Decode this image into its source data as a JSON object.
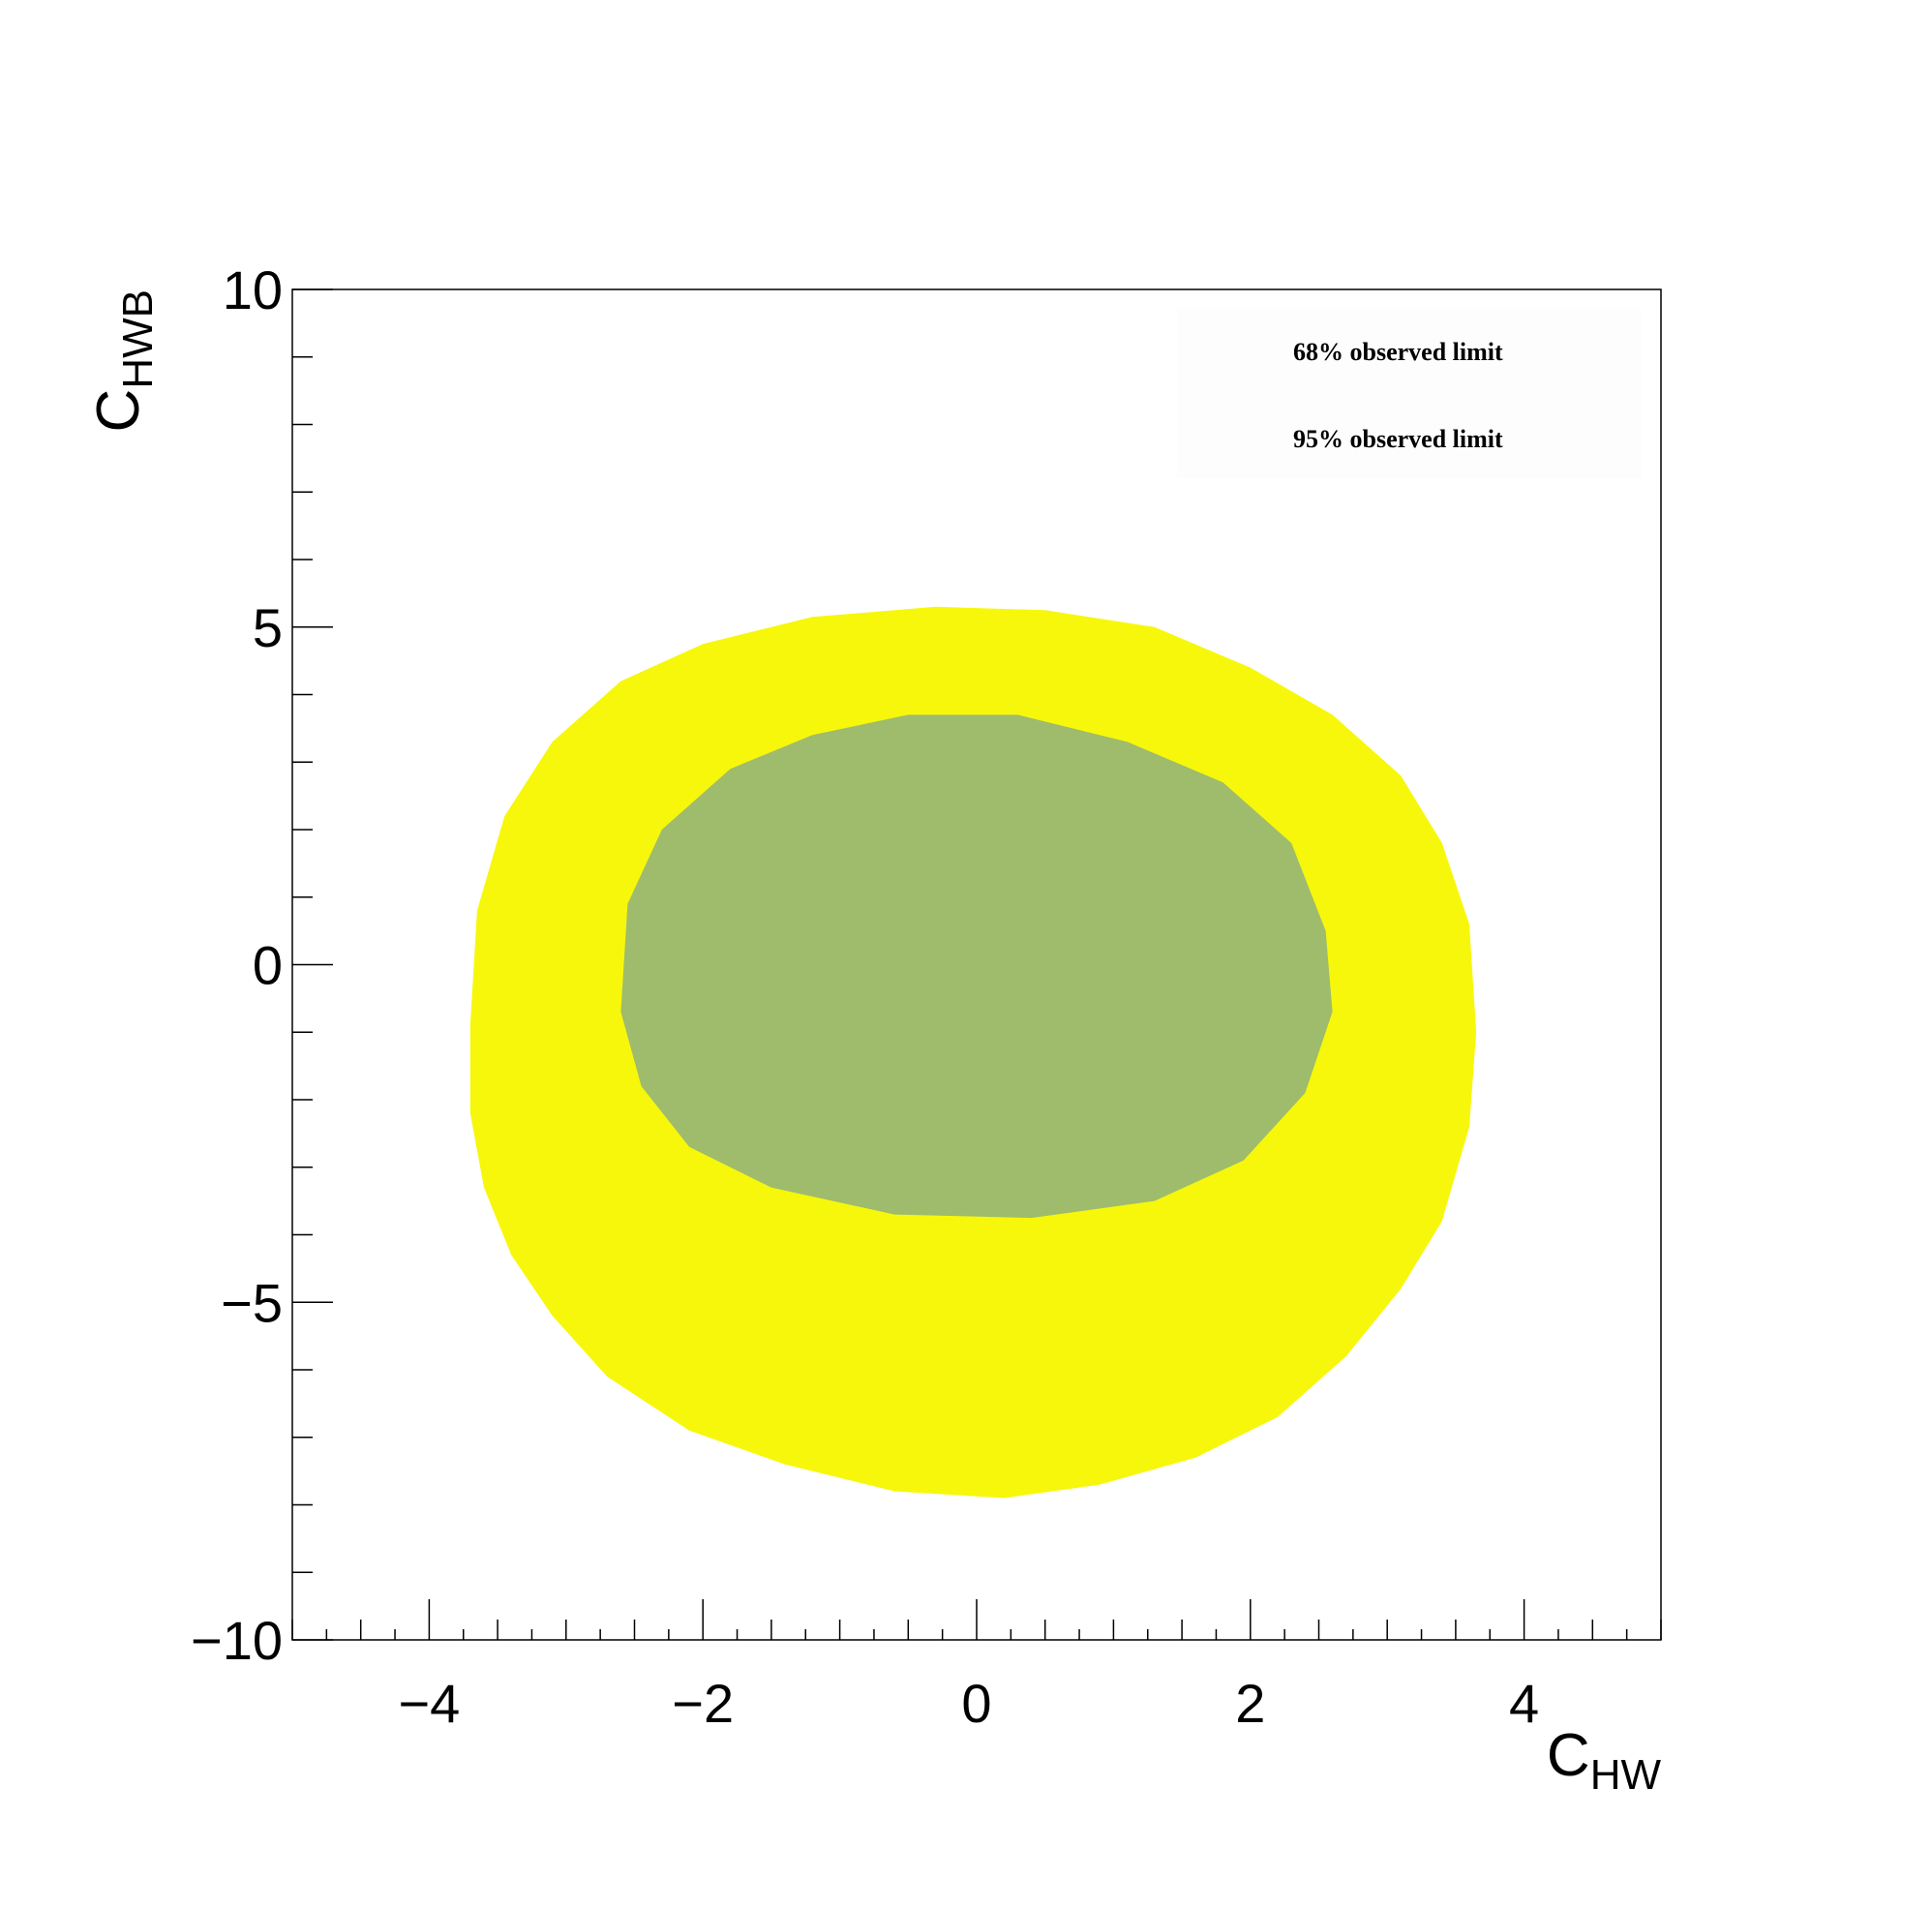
{
  "chart_data": {
    "type": "contour",
    "title": "",
    "xlabel": {
      "main": "C",
      "sub": "HW"
    },
    "ylabel": {
      "main": "C",
      "sub": "HWB"
    },
    "xlim": [
      -5,
      5
    ],
    "ylim": [
      -10,
      10
    ],
    "x_ticks": [
      -4,
      -2,
      0,
      2,
      4
    ],
    "x_tick_labels": [
      "−4",
      "−2",
      "0",
      "2",
      "4"
    ],
    "y_ticks": [
      -10,
      -5,
      0,
      5,
      10
    ],
    "y_tick_labels": [
      "−10",
      "−5",
      "0",
      "5",
      "10"
    ],
    "legend_position": "top-right",
    "series": [
      {
        "name": "95% observed limit",
        "color": "#f7f70c",
        "contour": [
          [
            -0.3,
            5.3
          ],
          [
            0.5,
            5.25
          ],
          [
            1.3,
            5.0
          ],
          [
            2.0,
            4.4
          ],
          [
            2.6,
            3.7
          ],
          [
            3.1,
            2.8
          ],
          [
            3.4,
            1.8
          ],
          [
            3.6,
            0.6
          ],
          [
            3.65,
            -1.0
          ],
          [
            3.6,
            -2.4
          ],
          [
            3.4,
            -3.8
          ],
          [
            3.1,
            -4.8
          ],
          [
            2.7,
            -5.8
          ],
          [
            2.2,
            -6.7
          ],
          [
            1.6,
            -7.3
          ],
          [
            0.9,
            -7.7
          ],
          [
            0.2,
            -7.9
          ],
          [
            -0.6,
            -7.8
          ],
          [
            -1.4,
            -7.4
          ],
          [
            -2.1,
            -6.9
          ],
          [
            -2.7,
            -6.1
          ],
          [
            -3.1,
            -5.2
          ],
          [
            -3.4,
            -4.3
          ],
          [
            -3.6,
            -3.3
          ],
          [
            -3.7,
            -2.2
          ],
          [
            -3.7,
            -0.9
          ],
          [
            -3.65,
            0.8
          ],
          [
            -3.45,
            2.2
          ],
          [
            -3.1,
            3.3
          ],
          [
            -2.6,
            4.2
          ],
          [
            -2.0,
            4.75
          ],
          [
            -1.2,
            5.15
          ]
        ]
      },
      {
        "name": "68% observed limit",
        "color": "#9ebc6b",
        "contour": [
          [
            -0.5,
            3.7
          ],
          [
            0.3,
            3.7
          ],
          [
            1.1,
            3.3
          ],
          [
            1.8,
            2.7
          ],
          [
            2.3,
            1.8
          ],
          [
            2.55,
            0.5
          ],
          [
            2.6,
            -0.7
          ],
          [
            2.4,
            -1.9
          ],
          [
            1.95,
            -2.9
          ],
          [
            1.3,
            -3.5
          ],
          [
            0.4,
            -3.75
          ],
          [
            -0.6,
            -3.7
          ],
          [
            -1.5,
            -3.3
          ],
          [
            -2.1,
            -2.7
          ],
          [
            -2.45,
            -1.8
          ],
          [
            -2.6,
            -0.7
          ],
          [
            -2.55,
            0.9
          ],
          [
            -2.3,
            2.0
          ],
          [
            -1.8,
            2.9
          ],
          [
            -1.2,
            3.4
          ]
        ]
      }
    ]
  }
}
